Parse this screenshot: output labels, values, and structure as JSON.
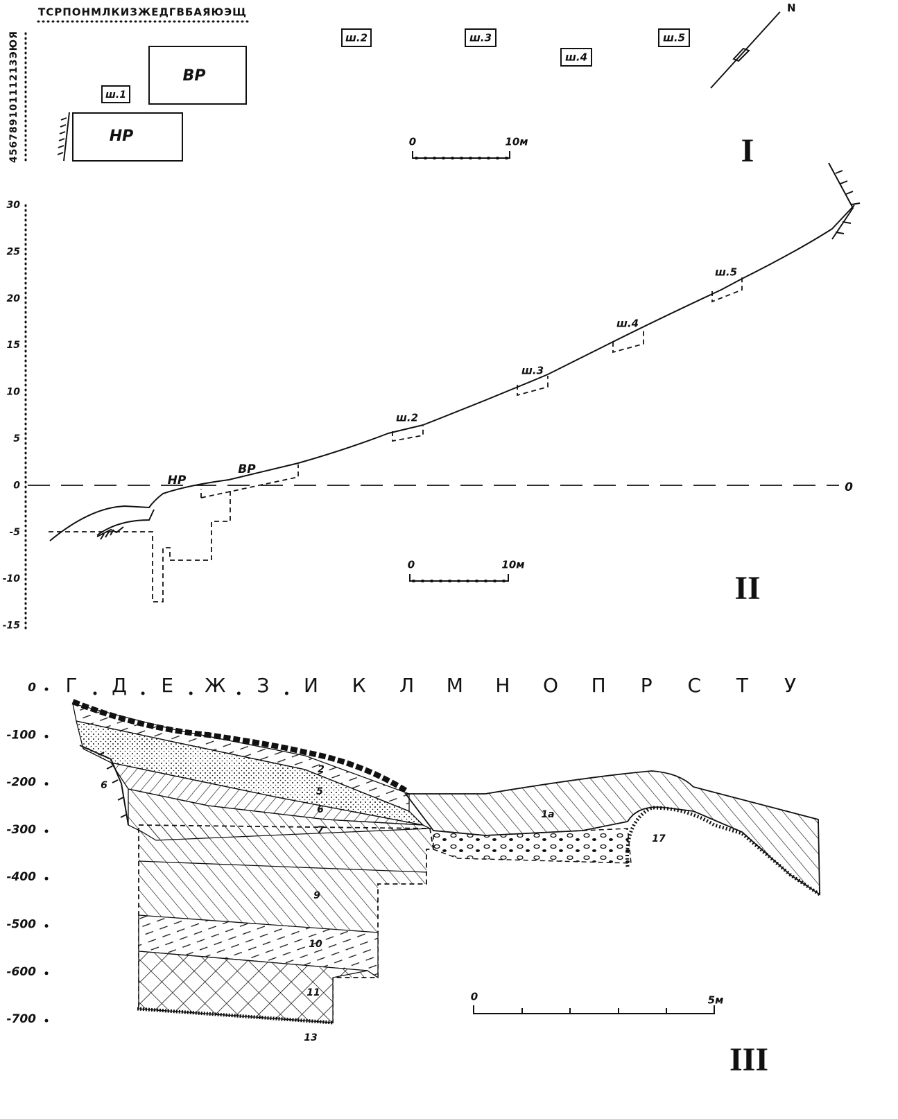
{
  "plan": {
    "top_grid_labels": "ТСРПОНМЛКИЗЖЕДГВБАЯЮЭЩ",
    "left_grid_labels": "45678910111213ЭЮЯ",
    "structures": [
      "ВР",
      "НР"
    ],
    "pits": [
      "ш.1",
      "ш.2",
      "ш.3",
      "ш.4",
      "ш.5"
    ],
    "north": "N",
    "scale": {
      "start": "0",
      "end": "10м"
    },
    "section_number": "I"
  },
  "profile": {
    "elevations": [
      "30",
      "25",
      "20",
      "15",
      "10",
      "5",
      "0",
      "-5",
      "-10",
      "-15"
    ],
    "structures": [
      "НР",
      "ВР"
    ],
    "pits": [
      "ш.2",
      "ш.3",
      "ш.4",
      "ш.5"
    ],
    "datum_label": "0",
    "scale": {
      "start": "0",
      "end": "10м"
    },
    "section_number": "II"
  },
  "section": {
    "columns": [
      "Г",
      "Д",
      "Е",
      "Ж",
      "З",
      "И",
      "К",
      "Л",
      "М",
      "Н",
      "О",
      "П",
      "Р",
      "С",
      "Т",
      "У"
    ],
    "depths": [
      "0",
      "-100",
      "-200",
      "-300",
      "-400",
      "-500",
      "-600",
      "-700"
    ],
    "layers": [
      "2",
      "5",
      "6",
      "7",
      "9",
      "10",
      "11",
      "13",
      "1а",
      "17",
      "6"
    ],
    "scale": {
      "start": "0",
      "end": "5м"
    },
    "section_number": "III"
  }
}
